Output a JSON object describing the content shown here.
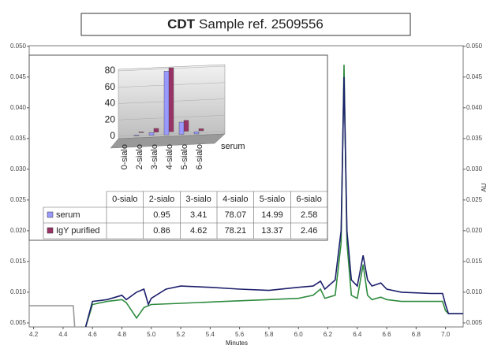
{
  "chart_data": [
    {
      "type": "line",
      "title_bold": "CDT",
      "title": "Sample ref. 2509556",
      "x_label": "Minutes",
      "y2_label": "AU",
      "xlim": [
        4.17,
        7.12
      ],
      "ylim": [
        0.00435,
        0.0501
      ],
      "y2lim": [
        0.00435,
        0.0501
      ],
      "xticks": [
        4.2,
        4.4,
        4.6,
        4.8,
        {
          "value": 5.0,
          "label": "5.0"
        },
        5.2,
        5.4,
        5.6,
        5.8,
        {
          "value": 6.0,
          "label": "6.0"
        },
        6.2,
        6.4,
        6.6,
        6.8,
        {
          "value": 7.0,
          "label": "7.0"
        }
      ],
      "yticks": [
        {
          "value": 0.005,
          "label": "0.005"
        },
        {
          "value": 0.01,
          "label": "0.010"
        },
        {
          "value": 0.015,
          "label": "0.015"
        },
        {
          "value": 0.02,
          "label": "0.020"
        },
        {
          "value": 0.025,
          "label": "0.025"
        },
        {
          "value": 0.03,
          "label": "0.030"
        },
        {
          "value": 0.035,
          "label": "0.035"
        },
        {
          "value": 0.04,
          "label": "0.040"
        },
        {
          "value": 0.045,
          "label": "0.045"
        },
        {
          "value": 0.05,
          "label": "0.050"
        }
      ],
      "y2ticks": [
        {
          "value": 0.005,
          "label": "0.005"
        },
        {
          "value": 0.01,
          "label": "0.010"
        },
        {
          "value": 0.015,
          "label": "0.015"
        },
        {
          "value": 0.02,
          "label": "0.020"
        },
        {
          "value": 0.025,
          "label": "0.025"
        },
        {
          "value": 0.03,
          "label": "0.030"
        },
        {
          "value": 0.035,
          "label": "0.035"
        },
        {
          "value": 0.04,
          "label": "0.040"
        },
        {
          "value": 0.045,
          "label": "0.045"
        },
        {
          "value": 0.05,
          "label": "0.050"
        }
      ],
      "series": [
        {
          "color": "#9a9a9a",
          "x": [
            4.17,
            4.47,
            4.48
          ],
          "values": [
            0.0078,
            0.0078,
            0.004
          ]
        },
        {
          "color": "#2e8b3e",
          "x": [
            4.55,
            4.6,
            4.7,
            4.8,
            4.83,
            4.9,
            4.95,
            5.0,
            5.2,
            5.5,
            5.8,
            6.0,
            6.1,
            6.15,
            6.18,
            6.25,
            6.29,
            6.31,
            6.33,
            6.36,
            6.4,
            6.44,
            6.47,
            6.5,
            6.56,
            6.6,
            6.7,
            6.98,
            7.0,
            7.02,
            7.12
          ],
          "values": [
            0.004,
            0.008,
            0.0085,
            0.0088,
            0.0083,
            0.0058,
            0.0075,
            0.008,
            0.0082,
            0.0085,
            0.0088,
            0.009,
            0.0095,
            0.0105,
            0.009,
            0.0095,
            0.018,
            0.047,
            0.018,
            0.0095,
            0.009,
            0.0145,
            0.0095,
            0.0088,
            0.0092,
            0.0088,
            0.0085,
            0.0085,
            0.007,
            0.0065,
            0.0065
          ]
        },
        {
          "color": "#1c1f6b",
          "x": [
            4.55,
            4.6,
            4.7,
            4.8,
            4.83,
            4.9,
            4.95,
            4.98,
            5.0,
            5.1,
            5.2,
            5.4,
            5.6,
            5.8,
            6.0,
            6.1,
            6.15,
            6.18,
            6.25,
            6.29,
            6.31,
            6.33,
            6.36,
            6.4,
            6.44,
            6.47,
            6.5,
            6.56,
            6.6,
            6.7,
            6.9,
            6.98,
            7.0,
            7.02,
            7.12
          ],
          "values": [
            0.004,
            0.0085,
            0.0088,
            0.0095,
            0.0088,
            0.01,
            0.0105,
            0.008,
            0.009,
            0.0105,
            0.011,
            0.0108,
            0.0105,
            0.0103,
            0.0108,
            0.011,
            0.0118,
            0.0105,
            0.012,
            0.02,
            0.045,
            0.02,
            0.012,
            0.011,
            0.016,
            0.012,
            0.011,
            0.0115,
            0.0105,
            0.01,
            0.0098,
            0.0098,
            0.008,
            0.0065,
            0.0065
          ]
        }
      ]
    },
    {
      "type": "bar",
      "z_label": "serum",
      "categories": [
        "0-sialo",
        "2-sialo",
        "3-sialo",
        "4-sialo",
        "5-sialo",
        "6-sialo"
      ],
      "ylim": [
        0,
        80
      ],
      "yticks": [
        0,
        20,
        40,
        60,
        80
      ],
      "series": [
        {
          "name": "serum",
          "color": "#9999ff",
          "values": [
            null,
            0.95,
            3.41,
            78.07,
            14.99,
            2.58
          ]
        },
        {
          "name": "IgY purified",
          "color": "#993366",
          "values": [
            null,
            0.86,
            4.62,
            78.21,
            13.37,
            2.46
          ]
        }
      ]
    }
  ]
}
